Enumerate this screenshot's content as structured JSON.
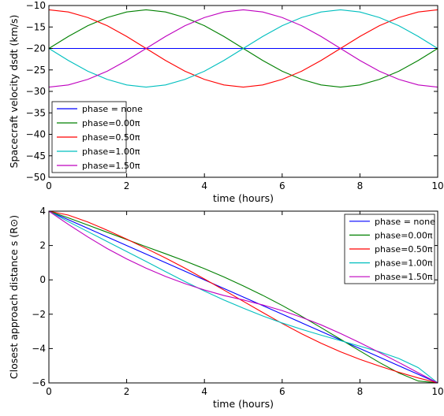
{
  "chart_data": [
    {
      "type": "line",
      "xlabel": "time (hours)",
      "ylabel": "Spacecraft velocity dsdt (km/s)",
      "xlim": [
        0,
        10
      ],
      "ylim": [
        -50,
        -10
      ],
      "xticks": [
        0,
        2,
        4,
        6,
        8,
        10
      ],
      "yticks": [
        -10,
        -15,
        -20,
        -25,
        -30,
        -35,
        -40,
        -45,
        -50
      ],
      "grid": false,
      "legend_position": "lower-left",
      "x": [
        0,
        0.5,
        1,
        1.5,
        2,
        2.5,
        3,
        3.5,
        4,
        4.5,
        5,
        5.5,
        6,
        6.5,
        7,
        7.5,
        8,
        8.5,
        9,
        9.5,
        10
      ],
      "series": [
        {
          "name": "phase = none",
          "color": "#0000ff",
          "values": [
            -20,
            -20,
            -20,
            -20,
            -20,
            -20,
            -20,
            -20,
            -20,
            -20,
            -20,
            -20,
            -20,
            -20,
            -20,
            -20,
            -20,
            -20,
            -20,
            -20,
            -20
          ]
        },
        {
          "name": "phase=0.00π",
          "color": "#008000",
          "values": [
            -20,
            -17.2,
            -14.7,
            -12.8,
            -11.5,
            -11,
            -11.5,
            -12.8,
            -14.7,
            -17.2,
            -20,
            -22.8,
            -25.3,
            -27.2,
            -28.5,
            -29,
            -28.5,
            -27.2,
            -25.3,
            -22.8,
            -20
          ]
        },
        {
          "name": "phase=0.50π",
          "color": "#ff0000",
          "values": [
            -11,
            -11.5,
            -12.8,
            -14.7,
            -17.2,
            -20,
            -22.8,
            -25.3,
            -27.2,
            -28.5,
            -29,
            -28.5,
            -27.2,
            -25.3,
            -22.8,
            -20,
            -17.2,
            -14.7,
            -12.8,
            -11.5,
            -11
          ]
        },
        {
          "name": "phase=1.00π",
          "color": "#00bfbf",
          "values": [
            -20,
            -22.8,
            -25.3,
            -27.2,
            -28.5,
            -29,
            -28.5,
            -27.2,
            -25.3,
            -22.8,
            -20,
            -17.2,
            -14.7,
            -12.8,
            -11.5,
            -11,
            -11.5,
            -12.8,
            -14.7,
            -17.2,
            -20
          ]
        },
        {
          "name": "phase=1.50π",
          "color": "#bf00bf",
          "values": [
            -29,
            -28.5,
            -27.2,
            -25.3,
            -22.8,
            -20,
            -17.2,
            -14.7,
            -12.8,
            -11.5,
            -11,
            -11.5,
            -12.8,
            -14.7,
            -17.2,
            -20,
            -22.8,
            -25.3,
            -27.2,
            -28.5,
            -29
          ]
        }
      ]
    },
    {
      "type": "line",
      "xlabel": "time (hours)",
      "ylabel": "Closest approach distance s (R⊙)",
      "xlim": [
        0,
        10
      ],
      "ylim": [
        -6,
        4
      ],
      "xticks": [
        0,
        2,
        4,
        6,
        8,
        10
      ],
      "yticks": [
        4,
        2,
        0,
        -2,
        -4,
        -6
      ],
      "grid": false,
      "legend_position": "upper-right",
      "x": [
        0,
        0.5,
        1,
        1.5,
        2,
        2.5,
        3,
        3.5,
        4,
        4.5,
        5,
        5.5,
        6,
        6.5,
        7,
        7.5,
        8,
        8.5,
        9,
        9.5,
        10
      ],
      "series": [
        {
          "name": "phase = none",
          "color": "#0000ff",
          "values": [
            4,
            3.5,
            3,
            2.5,
            2,
            1.5,
            1,
            0.5,
            0,
            -0.5,
            -1,
            -1.5,
            -2,
            -2.5,
            -3,
            -3.5,
            -4,
            -4.5,
            -5,
            -5.5,
            -6
          ]
        },
        {
          "name": "phase=0.00π",
          "color": "#008000",
          "values": [
            4,
            3.61,
            3.19,
            2.77,
            2.35,
            1.93,
            1.52,
            1.1,
            0.65,
            0.17,
            -0.35,
            -0.9,
            -1.49,
            -2.12,
            -2.78,
            -3.46,
            -4.14,
            -4.81,
            -5.42,
            -5.89,
            -6
          ]
        },
        {
          "name": "phase=0.50π",
          "color": "#ff0000",
          "values": [
            4,
            3.77,
            3.37,
            2.89,
            2.37,
            1.83,
            1.27,
            0.68,
            0.05,
            -0.59,
            -1.25,
            -1.9,
            -2.54,
            -3.14,
            -3.69,
            -4.19,
            -4.63,
            -5.02,
            -5.38,
            -5.71,
            -6
          ]
        },
        {
          "name": "phase=1.00π",
          "color": "#00bfbf",
          "values": [
            4,
            3.39,
            2.81,
            2.23,
            1.65,
            1.07,
            0.48,
            -0.1,
            -0.65,
            -1.17,
            -1.65,
            -2.1,
            -2.51,
            -2.88,
            -3.22,
            -3.54,
            -3.86,
            -4.19,
            -4.58,
            -5.11,
            -6
          ]
        },
        {
          "name": "phase=1.50π",
          "color": "#bf00bf",
          "values": [
            4,
            3.23,
            2.5,
            1.82,
            1.22,
            0.68,
            0.2,
            -0.22,
            -0.59,
            -0.91,
            -1.17,
            -1.46,
            -1.79,
            -2.18,
            -2.62,
            -3.12,
            -3.66,
            -4.23,
            -4.81,
            -5.41,
            -6
          ]
        }
      ]
    }
  ]
}
